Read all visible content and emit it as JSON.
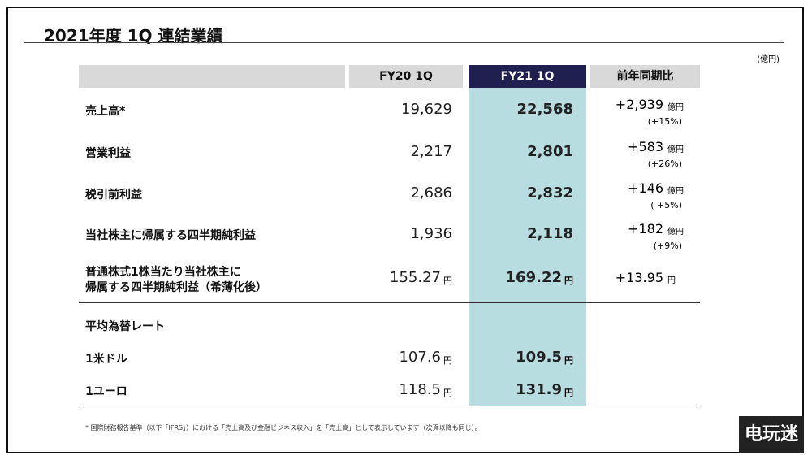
{
  "header": {
    "title": "2021年度 1Q 連結業績",
    "unit_note": "(億円)"
  },
  "table": {
    "columns": [
      "FY20 1Q",
      "FY21 1Q",
      "前年同期比"
    ],
    "rows": [
      {
        "label": [
          "売上高*"
        ],
        "fy20": "19,629",
        "fy21": "22,568",
        "change": "+2,939",
        "change_unit": "億円",
        "change_pct": "(+15%)"
      },
      {
        "label": [
          "営業利益"
        ],
        "fy20": "2,217",
        "fy21": "2,801",
        "change": "+583",
        "change_unit": "億円",
        "change_pct": "(+26%)"
      },
      {
        "label": [
          "税引前利益"
        ],
        "fy20": "2,686",
        "fy21": "2,832",
        "change": "+146",
        "change_unit": "億円",
        "change_pct": "( +5%)"
      },
      {
        "label": [
          "当社株主に帰属する四半期純利益"
        ],
        "fy20": "1,936",
        "fy21": "2,118",
        "change": "+182",
        "change_unit": "億円",
        "change_pct": "(+9%)"
      },
      {
        "label": [
          "普通株式1株当たり当社株主に",
          "帰属する四半期純利益（希薄化後）"
        ],
        "fy20": "155.27",
        "fy20_unit": "円",
        "fy21": "169.22",
        "fy21_unit": "円",
        "change": "+13.95",
        "change_unit": "円"
      }
    ],
    "fx_heading": "平均為替レート",
    "fx_rows": [
      {
        "label": [
          "1米ドル"
        ],
        "fy20": "107.6",
        "fy20_unit": "円",
        "fy21": "109.5",
        "fy21_unit": "円"
      },
      {
        "label": [
          "1ユーロ"
        ],
        "fy20": "118.5",
        "fy20_unit": "円",
        "fy21": "131.9",
        "fy21_unit": "円"
      }
    ]
  },
  "footnote": "* 国際財務報告基準（以下「IFRS」）における「売上高及び金融ビジネス収入」を「売上高」として表示しています（次頁以降も同じ）。",
  "watermark": "电玩迷"
}
